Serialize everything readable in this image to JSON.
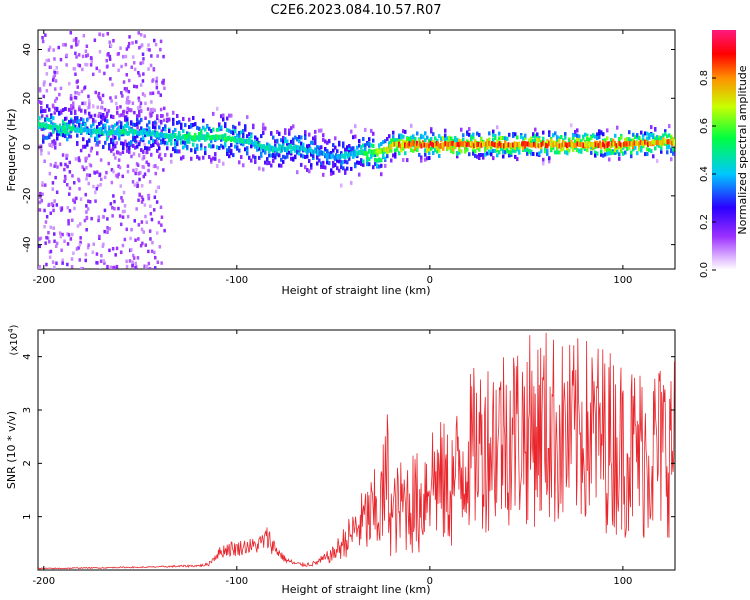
{
  "figure_title": "C2E6.2023.084.10.57.R07",
  "chart_data": [
    {
      "type": "heatmap",
      "title": "C2E6.2023.084.10.57.R07",
      "xlabel": "Height of straight line (km)",
      "ylabel": "Frequency (Hz)",
      "xlim": [
        -203,
        127
      ],
      "ylim": [
        -50,
        48
      ],
      "xticks": [
        -200,
        -100,
        0,
        100
      ],
      "xtick_labels": [
        "-200",
        "-100",
        "0",
        "100"
      ],
      "yticks": [
        -40,
        -20,
        0,
        20,
        40
      ],
      "ytick_labels": [
        "-40",
        "-20",
        "0",
        "20",
        "40"
      ],
      "colorbar": {
        "label": "Normalized spectral amplitude",
        "range": [
          0,
          1
        ],
        "ticks": [
          0.0,
          0.2,
          0.4,
          0.6,
          0.8
        ],
        "tick_labels": [
          "0.0",
          "0.2",
          "0.4",
          "0.6",
          "0.8"
        ],
        "colors": [
          "#ffffff",
          "#9b30ff",
          "#2a00ff",
          "#00c8ff",
          "#00ff40",
          "#c8ff00",
          "#ff9000",
          "#ff0000",
          "#ff1a80"
        ]
      },
      "ridge": {
        "x": [
          -200,
          -190,
          -180,
          -170,
          -160,
          -150,
          -140,
          -130,
          -120,
          -110,
          -100,
          -90,
          -80,
          -70,
          -60,
          -50,
          -40,
          -30,
          -22,
          -20,
          -10,
          0,
          20,
          40,
          60,
          80,
          100,
          120,
          127
        ],
        "frequency": [
          9,
          8,
          7,
          6,
          6,
          6,
          5,
          4,
          4,
          4,
          3,
          1,
          -1,
          0,
          -2,
          -4,
          -3,
          -2,
          -1,
          1,
          1,
          1,
          1,
          1,
          1,
          1,
          1,
          2,
          2
        ],
        "peak_amplitude": [
          0.5,
          0.5,
          0.45,
          0.45,
          0.5,
          0.45,
          0.45,
          0.5,
          0.55,
          0.55,
          0.5,
          0.45,
          0.45,
          0.45,
          0.4,
          0.4,
          0.45,
          0.6,
          0.7,
          0.8,
          0.85,
          0.9,
          0.85,
          0.85,
          0.85,
          0.85,
          0.85,
          0.8,
          0.8
        ]
      }
    },
    {
      "type": "line",
      "xlabel": "Height of straight line (km)",
      "ylabel": "SNR (10 * v/v)",
      "y_multiplier_label": "(x10",
      "y_multiplier_exponent": "4",
      "xlim": [
        -203,
        127
      ],
      "ylim": [
        0,
        4.5
      ],
      "xticks": [
        -200,
        -100,
        0,
        100
      ],
      "xtick_labels": [
        "-200",
        "-100",
        "0",
        "100"
      ],
      "yticks": [
        1,
        2,
        3,
        4
      ],
      "ytick_labels": [
        "1",
        "2",
        "3",
        "4"
      ],
      "color": "#e8262c",
      "series": [
        {
          "name": "SNR",
          "x": [
            -203,
            -190,
            -180,
            -170,
            -160,
            -150,
            -140,
            -130,
            -120,
            -115,
            -110,
            -105,
            -100,
            -95,
            -90,
            -86,
            -84,
            -80,
            -75,
            -70,
            -65,
            -60,
            -55,
            -50,
            -45,
            -40,
            -35,
            -30,
            -25,
            -22,
            -20,
            -15,
            -10,
            -5,
            0,
            10,
            20,
            30,
            40,
            50,
            60,
            70,
            80,
            90,
            100,
            110,
            120,
            127
          ],
          "y": [
            0.03,
            0.03,
            0.04,
            0.04,
            0.05,
            0.05,
            0.06,
            0.07,
            0.08,
            0.1,
            0.3,
            0.4,
            0.4,
            0.45,
            0.45,
            0.55,
            0.6,
            0.4,
            0.2,
            0.12,
            0.1,
            0.12,
            0.2,
            0.3,
            0.5,
            0.7,
            0.9,
            1.0,
            1.2,
            1.8,
            1.0,
            1.2,
            1.3,
            1.2,
            1.8,
            1.5,
            2.2,
            2.4,
            2.6,
            2.6,
            2.7,
            2.5,
            2.6,
            2.5,
            2.3,
            2.2,
            2.3,
            2.3
          ],
          "spread": [
            0.01,
            0.01,
            0.01,
            0.01,
            0.01,
            0.01,
            0.01,
            0.02,
            0.02,
            0.03,
            0.1,
            0.15,
            0.15,
            0.15,
            0.15,
            0.2,
            0.25,
            0.15,
            0.06,
            0.04,
            0.04,
            0.05,
            0.1,
            0.15,
            0.3,
            0.4,
            0.6,
            0.8,
            1.0,
            1.3,
            0.8,
            0.9,
            1.0,
            1.0,
            1.2,
            1.2,
            1.5,
            1.7,
            1.8,
            1.8,
            1.9,
            1.8,
            1.8,
            1.8,
            1.7,
            1.7,
            1.7,
            1.7
          ]
        }
      ]
    }
  ]
}
